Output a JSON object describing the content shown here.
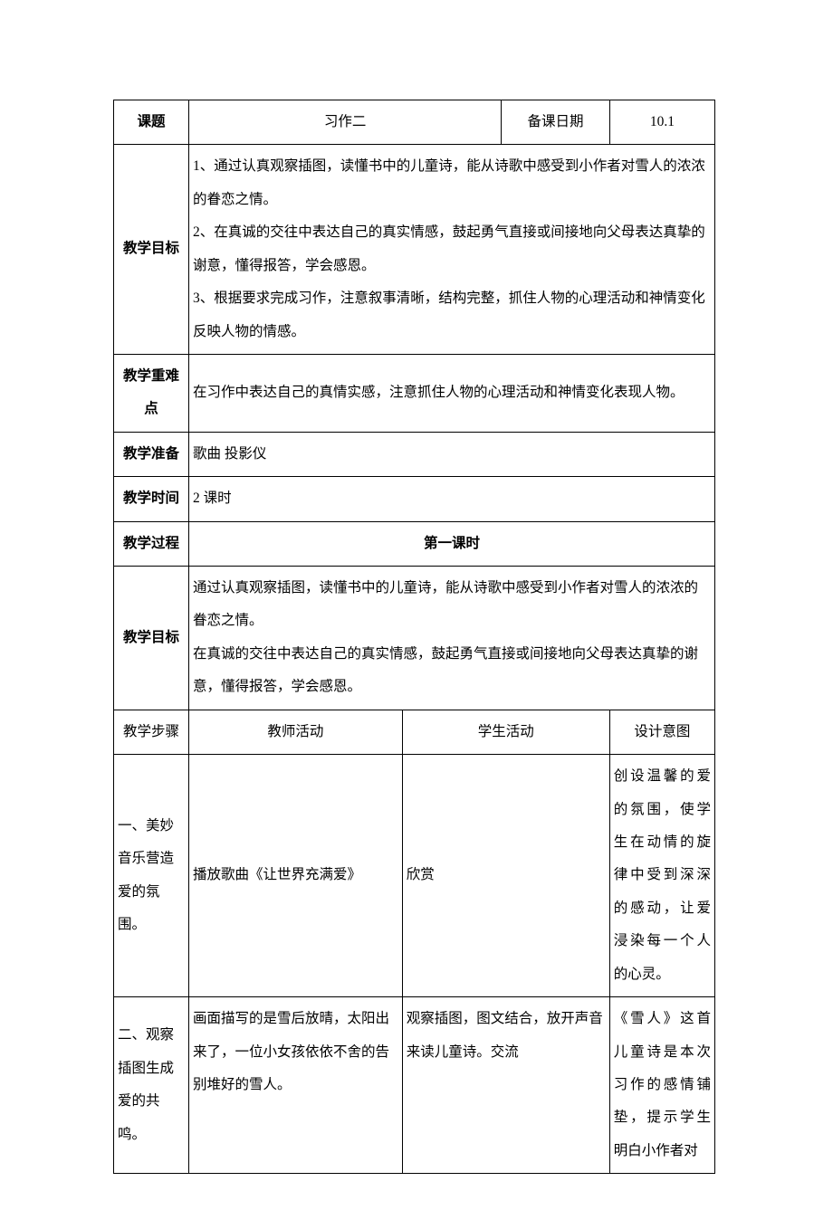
{
  "header": {
    "topic_label": "课题",
    "topic_value": "习作二",
    "date_label": "备课日期",
    "date_value": "10.1"
  },
  "goals": {
    "label": "教学目标",
    "text": "1、通过认真观察插图，读懂书中的儿童诗，能从诗歌中感受到小作者对雪人的浓浓的眷恋之情。\n2、在真诚的交往中表达自己的真实情感，鼓起勇气直接或间接地向父母表达真挚的谢意，懂得报答，学会感恩。\n3、根据要求完成习作，注意叙事清晰，结构完整，抓住人物的心理活动和神情变化反映人物的情感。"
  },
  "difficulty": {
    "label": "教学重难点",
    "text": "在习作中表达自己的真情实感，注意抓住人物的心理活动和神情变化表现人物。"
  },
  "prep": {
    "label": "教学准备",
    "text": "歌曲 投影仪"
  },
  "time": {
    "label": "教学时间",
    "text": "2 课时"
  },
  "process": {
    "label": "教学过程",
    "value": "第一课时"
  },
  "goals2": {
    "label": "教学目标",
    "text": "通过认真观察插图，读懂书中的儿童诗，能从诗歌中感受到小作者对雪人的浓浓的眷恋之情。\n在真诚的交往中表达自己的真实情感，鼓起勇气直接或间接地向父母表达真挚的谢意，懂得报答，学会感恩。"
  },
  "steps_header": {
    "step": "教学步骤",
    "teacher": "教师活动",
    "student": "学生活动",
    "intent": "设计意图"
  },
  "step1": {
    "step": "一、美妙音乐营造爱的氛围。",
    "teacher": "播放歌曲《让世界充满爱》",
    "student": "欣赏",
    "intent": "创设温馨的爱的氛围，使学生在动情的旋律中受到深深的感动，让爱浸染每一个人的心灵。"
  },
  "step2": {
    "step": "二、观察插图生成爱的共鸣。",
    "teacher": "画面描写的是雪后放晴，太阳出来了，一位小女孩依依不舍的告别堆好的雪人。",
    "student": "观察插图，图文结合，放开声音来读儿童诗。交流",
    "intent": "《雪人》这首儿童诗是本次习作的感情铺垫，提示学生明白小作者对"
  }
}
